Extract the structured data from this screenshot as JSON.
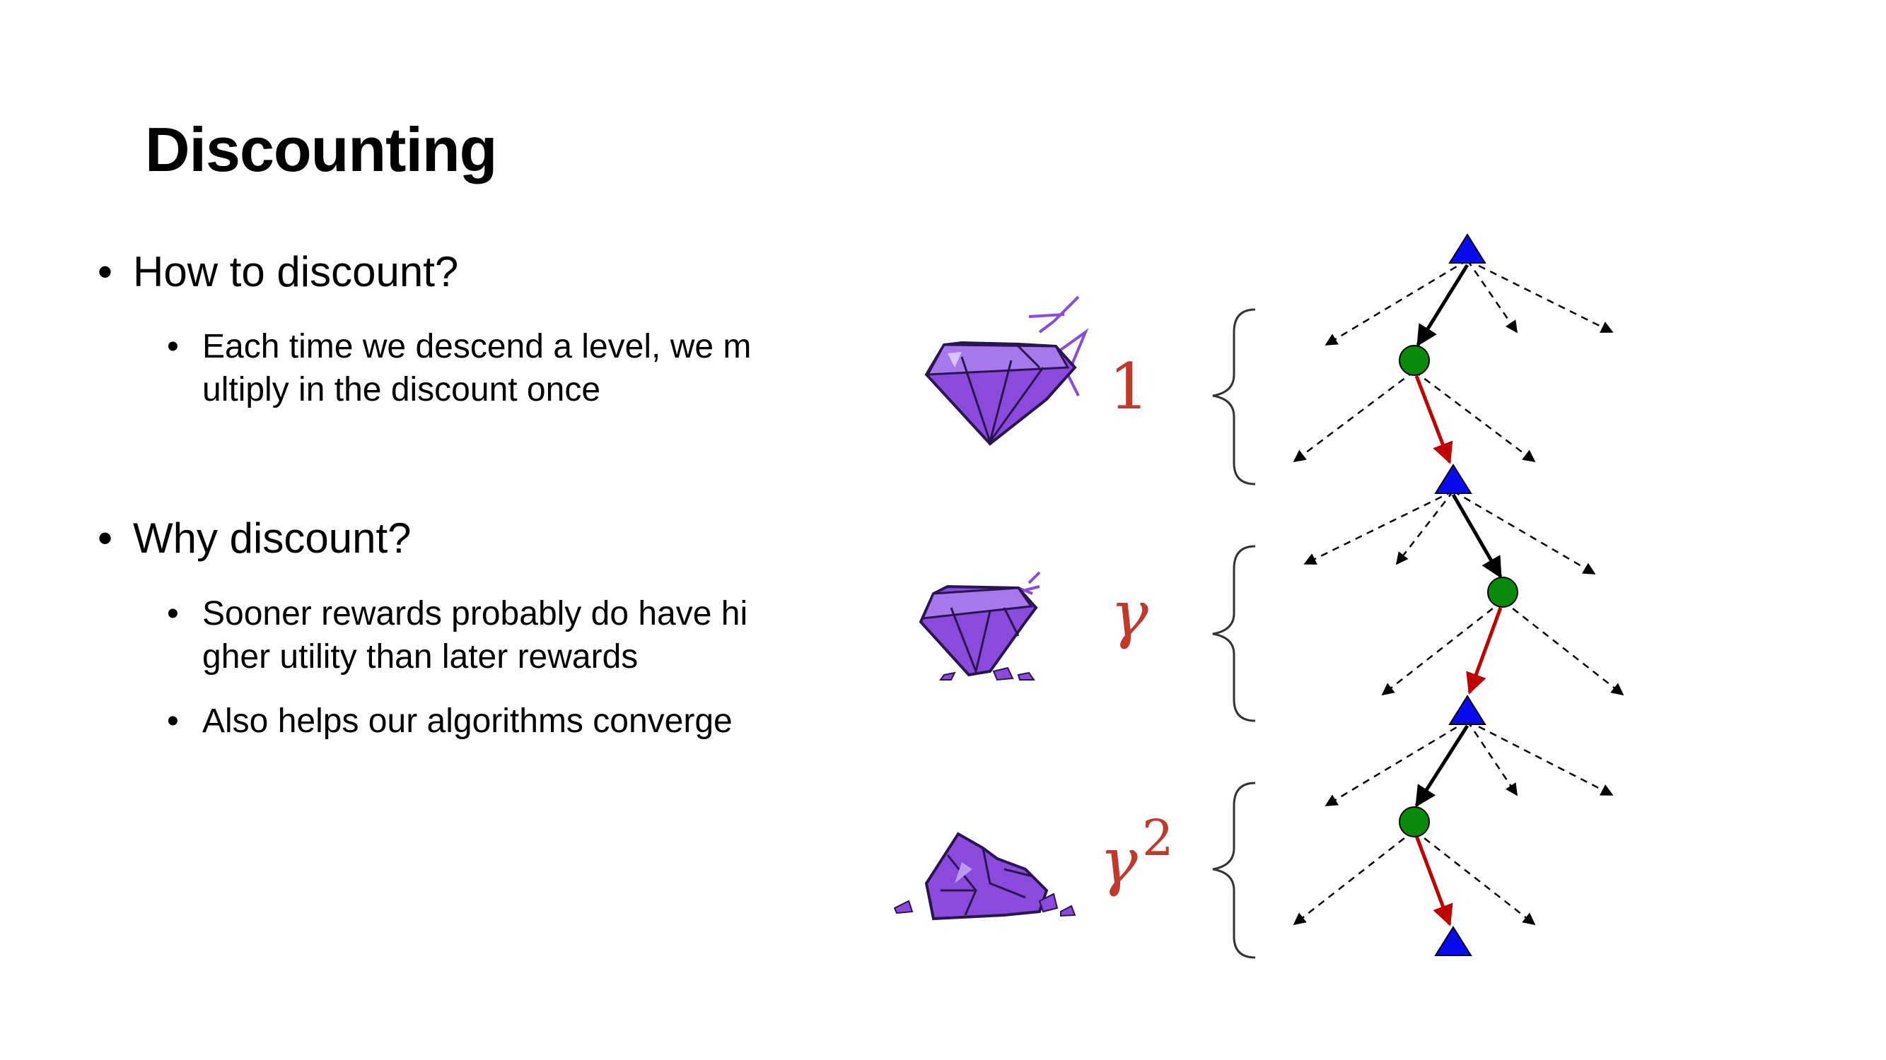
{
  "slide": {
    "title": "Discounting",
    "bullets": [
      {
        "text": "How to discount?",
        "sub": [
          {
            "lines": [
              "Each time we descend a level, we m",
              "ultiply in the discount once"
            ]
          }
        ]
      },
      {
        "text": "Why discount?",
        "sub": [
          {
            "lines": [
              "Sooner rewards probably do have hi",
              "gher utility than later rewards"
            ]
          },
          {
            "lines": [
              "Also helps our algorithms converge"
            ]
          }
        ]
      }
    ],
    "bullet_char": "•"
  },
  "diagram": {
    "factors": [
      {
        "base": "1",
        "exp": ""
      },
      {
        "base": "γ",
        "exp": ""
      },
      {
        "base": "γ",
        "exp": "2"
      }
    ],
    "colors": {
      "max_node": "#0a0af0",
      "chance_node": "#0a8a0a",
      "chosen_edge": "#000000",
      "sampled_edge": "#c00000",
      "factor_text": "#c0392b",
      "gem": "#8a4bdc"
    },
    "icons": [
      "intact-gem-icon",
      "chipped-gem-icon",
      "shattered-gem-icon"
    ]
  }
}
